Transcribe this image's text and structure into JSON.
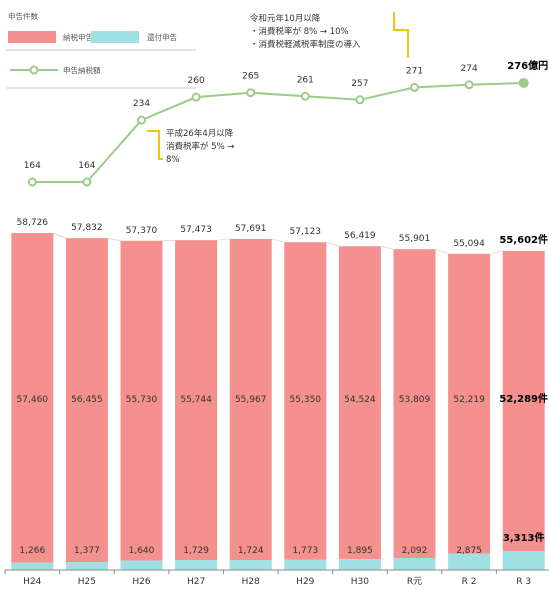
{
  "legend": {
    "title": "申告件数",
    "filing_label": "納税申告",
    "refund_label": "還付申告",
    "tax_label": "申告納税額",
    "filing_color": "#f4908e",
    "refund_color": "#9fe0e2",
    "line_color": "#9ccd88",
    "gap_color": "#dddddd"
  },
  "annotations": {
    "h26": "平成26年4月以降\n消費税率が 5% →\n8%",
    "r1": "令和元年10月以降\n・消費税率が 8% → 10%\n・消費税軽減税率制度の導入"
  },
  "chart_data": {
    "type": "bar",
    "stacked": true,
    "categories": [
      "H24",
      "H25",
      "H26",
      "H27",
      "H28",
      "H29",
      "H30",
      "R元",
      "R 2",
      "R 3"
    ],
    "series": [
      {
        "name": "還付申告",
        "values": [
          1266,
          1377,
          1640,
          1729,
          1724,
          1773,
          1895,
          2092,
          2875,
          3313
        ]
      },
      {
        "name": "納税申告",
        "values": [
          57460,
          56455,
          55730,
          55744,
          55967,
          55350,
          54524,
          53809,
          52219,
          52289
        ]
      },
      {
        "name": "申告納税額",
        "type": "line",
        "values": [
          164,
          164,
          234,
          260,
          265,
          261,
          257,
          271,
          274,
          276
        ]
      }
    ],
    "totals": [
      58726,
      57832,
      57370,
      57473,
      57691,
      57123,
      56419,
      55901,
      55094,
      55602
    ],
    "total_labels": [
      "58,726",
      "57,832",
      "57,370",
      "57,473",
      "57,691",
      "57,123",
      "56,419",
      "55,901",
      "55,094",
      "55,602件"
    ],
    "filing_labels": [
      "57,460",
      "56,455",
      "55,730",
      "55,744",
      "55,967",
      "55,350",
      "54,524",
      "53,809",
      "52,219",
      "52,289件"
    ],
    "refund_labels": [
      "1,266",
      "1,377",
      "1,640",
      "1,729",
      "1,724",
      "1,773",
      "1,895",
      "2,092",
      "2,875",
      "3,313件"
    ],
    "tax_labels": [
      "164",
      "164",
      "234",
      "260",
      "265",
      "261",
      "257",
      "271",
      "274",
      "276億円"
    ]
  }
}
